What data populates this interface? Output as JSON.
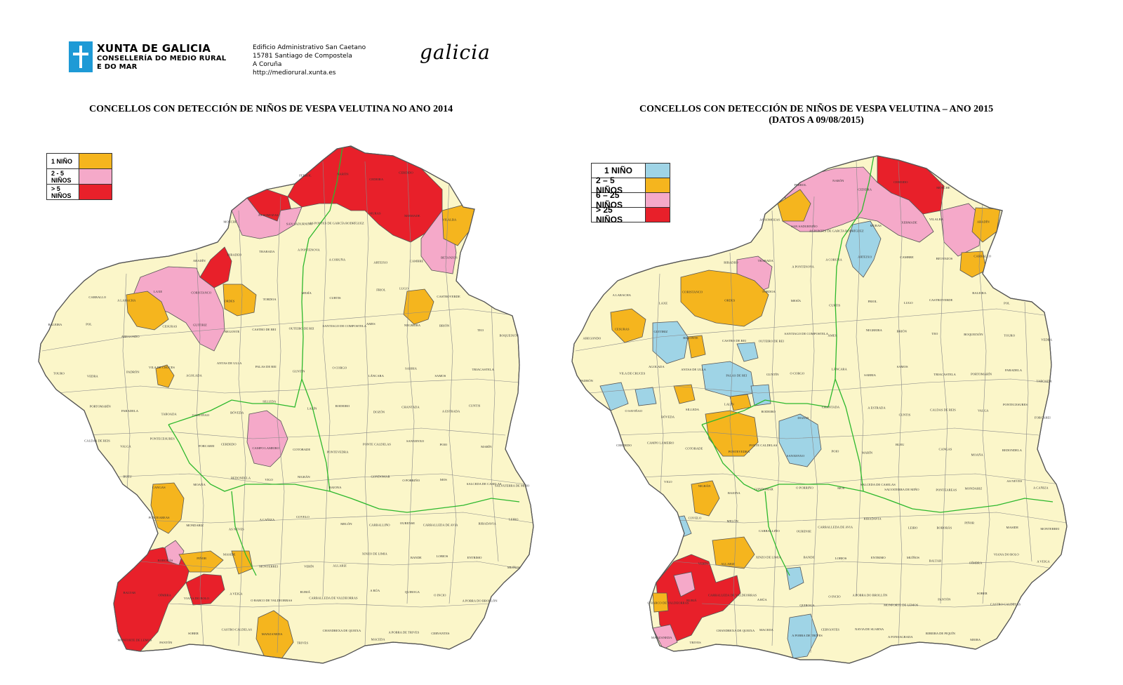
{
  "header": {
    "org_name": "XUNTA DE GALICIA",
    "dept_line1": "CONSELLERÍA DO MEDIO RURAL",
    "dept_line2": "E DO MAR",
    "address_lines": [
      "Edificio Administrativo San Caetano",
      "15781 Santiago de Compostela",
      "A Coruña",
      "http://mediorural.xunta.es"
    ],
    "brand": "galicia"
  },
  "map_2014": {
    "title": "CONCELLOS CON DETECCIÓN DE NIÑOS DE VESPA VELUTINA NO ANO 2014",
    "legend": [
      {
        "label": "1 NIÑO",
        "color": "#f5b51e"
      },
      {
        "label": "2 - 5 NIÑOS",
        "color": "#f5a9c9"
      },
      {
        "label": "> 5 NIÑOS",
        "color": "#e8202a"
      }
    ],
    "labels": [
      "FERROL",
      "NARÓN",
      "CEDEIRA",
      "CERDIDO",
      "MOECHE",
      "AS SOMOZAS",
      "SAN SADURNIÑO",
      "AS PONTES DE GARCÍA RODRÍGUEZ",
      "MURAS",
      "XERMADE",
      "VILALBA",
      "ABADÍN",
      "RIBADEO",
      "TRABADA",
      "A PONTENOVA",
      "A CORUÑA",
      "ARTEIXO",
      "CAMBRE",
      "BETANZOS",
      "CARBALLO",
      "A LARACHA",
      "LAXE",
      "CORISTANCO",
      "ORDES",
      "TORDOA",
      "MESÍA",
      "CURTIS",
      "FRIOL",
      "LUGO",
      "CASTROVERDE",
      "BALEIRA",
      "POL",
      "ABEGONDO",
      "CESURAS",
      "GUITIRIZ",
      "BEGONTE",
      "CASTRO DE REI",
      "OUTEIRO DE REI",
      "SANTIAGO DE COMPOSTELA",
      "AMES",
      "NEGREIRA",
      "BRIÓN",
      "TEO",
      "BOQUEIXÓN",
      "TOURO",
      "VEDRA",
      "PADRÓN",
      "VILA DE CRUCES",
      "AGOLADA",
      "ANTAS DE ULLA",
      "PALAS DE REI",
      "GUNTÍN",
      "O CORGO",
      "LÁNCARA",
      "SARRIA",
      "SAMOS",
      "TRIACASTELA",
      "PORTOMARÍN",
      "PARADELA",
      "TABOADA",
      "O SAVIÑAO",
      "BÓVEDA",
      "SILLEDA",
      "LALÍN",
      "RODEIRO",
      "DOZÓN",
      "CHANTADA",
      "A ESTRADA",
      "CUNTIS",
      "CALDAS DE REIS",
      "VALGA",
      "PONTECESURES",
      "FORCAREI",
      "CERDEDO",
      "CAMPO LAMEIRO",
      "COTOBADE",
      "PONTEVEDRA",
      "PONTE CALDELAS",
      "SANXENXO",
      "POIO",
      "MARÍN",
      "BUEU",
      "CANGAS",
      "MOAÑA",
      "REDONDELA",
      "VIGO",
      "NIGRÁN",
      "BAIONA",
      "GONDOMAR",
      "O PORRIÑO",
      "MOS",
      "SALCEDA DE CASELAS",
      "SALVATERRA DE MIÑO",
      "PONTEAREAS",
      "MONDARIZ",
      "AS NEVES",
      "A CAÑIZA",
      "COVELO",
      "MELÓN",
      "CARBALLIÑO",
      "OURENSE",
      "CARBALLEDA DE AVIA",
      "RIBADAVIA",
      "LEIRO",
      "BOBORÁS",
      "PIÑOR",
      "MASIDE",
      "MONTERREI",
      "VERÍN",
      "ALLARIZ",
      "XINZO DE LIMIA",
      "BANDE",
      "LOBIOS",
      "ENTRIMO",
      "MUÍÑOS",
      "BALTAR",
      "OÍMBRA",
      "VIANA DO BOLO",
      "A VEIGA",
      "O BARCO DE VALDEORRAS",
      "RUBIÁ",
      "CARBALLEDA DE VALDEORRAS",
      "A RÚA",
      "QUIROGA",
      "O INCIO",
      "A POBRA DO BROLLÓN",
      "MONFORTE DE LEMOS",
      "PANTÓN",
      "SOBER",
      "CASTRO CALDELAS",
      "MANZANEDA",
      "TRIVES",
      "CHANDREXA DE QUEIXA",
      "MACEDA",
      "A POBRA DE TRIVES",
      "CERVANTES",
      "NAVIA DE SUARNA",
      "A FONSAGRADA",
      "RIBEIRA DE PIQUÍN",
      "MEIRA",
      "A PASTORIZA",
      "RIOTORTO",
      "SARIEGOS",
      "MUXÍA",
      "CEE",
      "DUMBRÍA",
      "CORCUBIÓN",
      "FISTERRA",
      "VIMIANZO",
      "ZAS",
      "MAZARICOS",
      "SANTA COMBA",
      "VAL DO DUBRA",
      "TRAZO",
      "OROSO",
      "O PINO",
      "ARZÚA",
      "MELIDE",
      "TOQUES",
      "SOBRADO",
      "BOIMORTO",
      "CARNOTA",
      "OUTES",
      "MUROS",
      "NOIA",
      "LOUSAME",
      "PORTO DO SON",
      "BOIRO",
      "RIANXO",
      "A POBRA DO CARAMIÑAL",
      "RIBEIRA",
      "VILAGARCÍA DE AROUSA",
      "CAMBADOS",
      "O GROVE",
      "A ILLA DE AROUSA",
      "MEAÑO",
      "MEIS",
      "RIBADUMIA",
      "VILANOVA DE AROUSA",
      "BARRO",
      "SILLEDA",
      "O ROSAL",
      "A GUARDA",
      "TOMIÑO",
      "TUI",
      "OIA"
    ]
  },
  "map_2015": {
    "title": "CONCELLOS CON DETECCIÓN DE NIÑOS DE VESPA VELUTINA – ANO 2015",
    "subtitle": "(DATOS A 09/08/2015)",
    "legend": [
      {
        "label": "1 NIÑO",
        "color": "#9fd4e6"
      },
      {
        "label": "2 – 5 NIÑOS",
        "color": "#f5b51e"
      },
      {
        "label": "6 – 25 NIÑOS",
        "color": "#f5a9c9"
      },
      {
        "label": "> 25 NIÑOS",
        "color": "#e8202a"
      }
    ]
  },
  "colors": {
    "base": "#fbf6c9",
    "border": "#555555",
    "province_border": "#2db82d"
  }
}
